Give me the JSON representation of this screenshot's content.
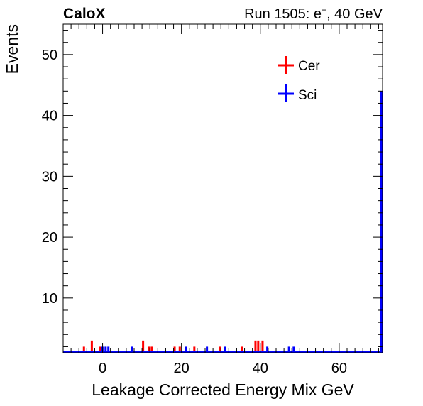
{
  "header": {
    "experiment": "CaloX",
    "run_label": "Run 1505: e",
    "run_sup": "+",
    "run_energy": ", 40 GeV"
  },
  "colors": {
    "cer": "#ff0000",
    "sci": "#0000ff",
    "axis": "#000000"
  },
  "chart_data": {
    "type": "bar",
    "xlabel": "Leakage Corrected Energy Mix GeV",
    "ylabel": "Events",
    "xlim": [
      -10,
      71
    ],
    "ylim": [
      1,
      55
    ],
    "x_ticks": [
      0,
      20,
      40,
      60
    ],
    "y_ticks": [
      10,
      20,
      30,
      40,
      50
    ],
    "legend_placement": "top-right",
    "series": [
      {
        "name": "Cer",
        "color": "#ff0000",
        "points": [
          {
            "x": -5,
            "y": 2
          },
          {
            "x": -3,
            "y": 3
          },
          {
            "x": -1,
            "y": 2
          },
          {
            "x": 10,
            "y": 3
          },
          {
            "x": 11.5,
            "y": 2
          },
          {
            "x": 12.2,
            "y": 2
          },
          {
            "x": 18,
            "y": 2
          },
          {
            "x": 19.3,
            "y": 2
          },
          {
            "x": 23,
            "y": 2
          },
          {
            "x": 29.5,
            "y": 2
          },
          {
            "x": 35,
            "y": 2
          },
          {
            "x": 38.5,
            "y": 3
          },
          {
            "x": 39.2,
            "y": 3
          },
          {
            "x": 40.3,
            "y": 3
          }
        ]
      },
      {
        "name": "Sci",
        "color": "#0000ff",
        "points": [
          {
            "x": -0.3,
            "y": 2
          },
          {
            "x": 0.5,
            "y": 2
          },
          {
            "x": 1.2,
            "y": 2
          },
          {
            "x": 7.2,
            "y": 2
          },
          {
            "x": 20.8,
            "y": 2
          },
          {
            "x": 26.2,
            "y": 2
          },
          {
            "x": 30.8,
            "y": 2
          },
          {
            "x": 41.5,
            "y": 2
          },
          {
            "x": 47,
            "y": 2
          },
          {
            "x": 48.2,
            "y": 2
          },
          {
            "x": 70.8,
            "y": 44
          }
        ]
      }
    ]
  }
}
